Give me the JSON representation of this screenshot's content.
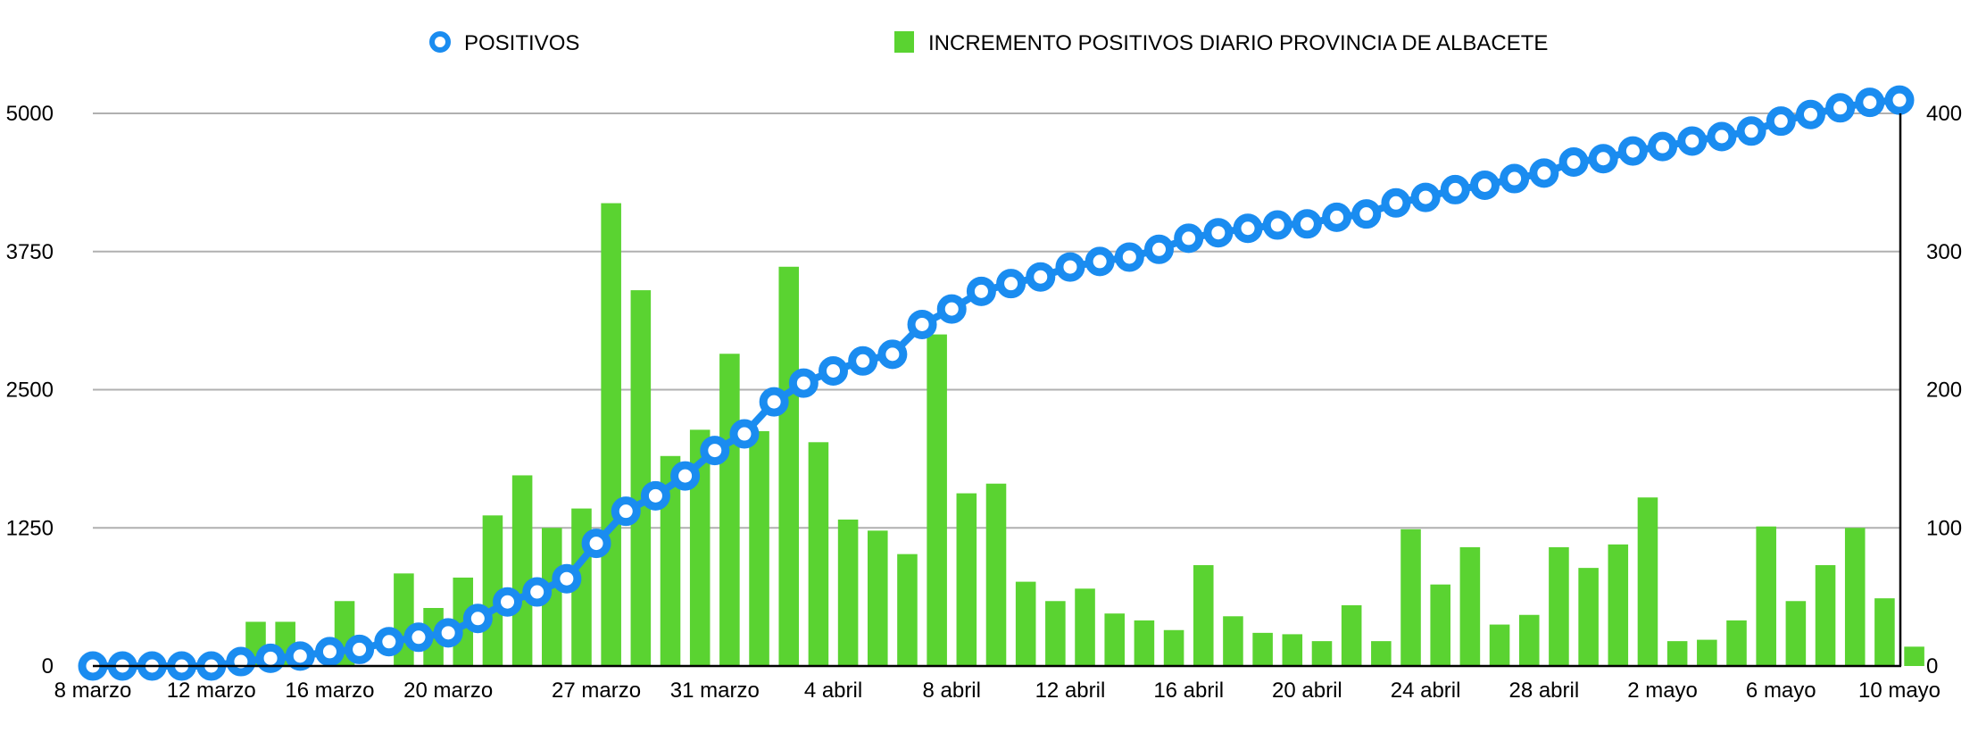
{
  "chart_data": {
    "type": "bar+line",
    "title": "",
    "legend": {
      "position": "top",
      "line_label": "POSITIVOS",
      "bar_label": "INCREMENTO POSITIVOS DIARIO PROVINCIA DE ALBACETE"
    },
    "x_tick_labels": [
      "8 marzo",
      "12 marzo",
      "16 marzo",
      "20 marzo",
      "27 marzo",
      "31 marzo",
      "4 abril",
      "8 abril",
      "12 abril",
      "16 abril",
      "20 abril",
      "24 abril",
      "28 abril",
      "2 mayo",
      "6 mayo",
      "10 mayo"
    ],
    "x_tick_indices": [
      0,
      4,
      8,
      12,
      17,
      21,
      25,
      29,
      33,
      37,
      41,
      45,
      49,
      53,
      57,
      61
    ],
    "y_left": {
      "ticks": [
        "0",
        "1250",
        "2500",
        "3750",
        "5000"
      ],
      "ylim": [
        0,
        5000
      ]
    },
    "y_right": {
      "ticks": [
        "0",
        "100",
        "200",
        "300",
        "400"
      ],
      "ylim": [
        0,
        400
      ]
    },
    "grid": true,
    "colors": {
      "line": "#1a8cf0",
      "bar": "#5ad331",
      "grid": "#b0b0b0",
      "axis": "#000000"
    },
    "series": [
      {
        "name": "POSITIVOS",
        "type": "line",
        "axis": "left",
        "values": [
          0,
          0,
          0,
          0,
          0,
          40,
          70,
          90,
          130,
          150,
          220,
          260,
          300,
          430,
          580,
          670,
          790,
          1110,
          1400,
          1540,
          1720,
          1950,
          2100,
          2390,
          2560,
          2670,
          2760,
          2820,
          3090,
          3230,
          3390,
          3460,
          3520,
          3610,
          3660,
          3700,
          3770,
          3870,
          3920,
          3960,
          3990,
          4000,
          4060,
          4090,
          4190,
          4240,
          4310,
          4350,
          4410,
          4460,
          4560,
          4590,
          4660,
          4700,
          4750,
          4790,
          4840,
          4930,
          4990,
          5050,
          5100,
          5120
        ]
      },
      {
        "name": "INCREMENTO POSITIVOS DIARIO PROVINCIA DE ALBACETE",
        "type": "bar",
        "axis": "right",
        "values": [
          0,
          0,
          0,
          0,
          0,
          32,
          32,
          0,
          47,
          0,
          67,
          42,
          64,
          109,
          138,
          100,
          114,
          335,
          272,
          152,
          171,
          226,
          170,
          289,
          162,
          106,
          98,
          81,
          240,
          125,
          132,
          61,
          47,
          56,
          38,
          33,
          26,
          73,
          36,
          24,
          23,
          18,
          44,
          18,
          99,
          59,
          86,
          30,
          37,
          86,
          71,
          88,
          122,
          18,
          19,
          33,
          101,
          47,
          73,
          100,
          49,
          14
        ]
      }
    ]
  }
}
